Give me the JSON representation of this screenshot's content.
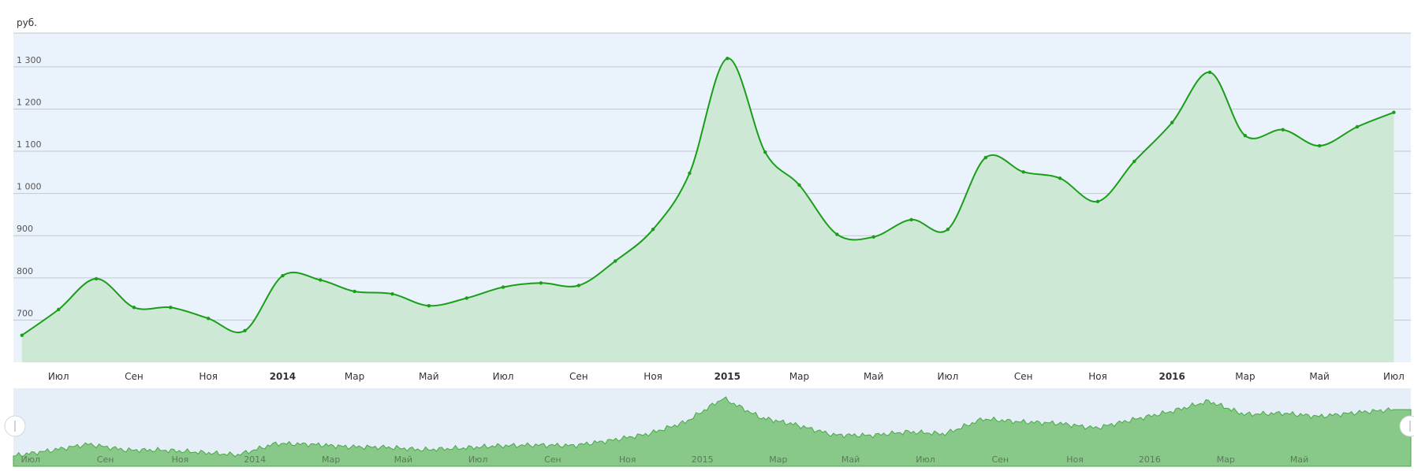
{
  "chart_data": {
    "type": "area",
    "unit_label": "руб.",
    "ylim": [
      600,
      1380
    ],
    "y_ticks": [
      {
        "value": 700,
        "label": "700"
      },
      {
        "value": 800,
        "label": "800"
      },
      {
        "value": 900,
        "label": "900"
      },
      {
        "value": 1000,
        "label": "1 000"
      },
      {
        "value": 1100,
        "label": "1 100"
      },
      {
        "value": 1200,
        "label": "1 200"
      },
      {
        "value": 1300,
        "label": "1 300"
      }
    ],
    "x_range": [
      "2013-05-25",
      "2016-07-15"
    ],
    "x_ticks": [
      {
        "date": "2013-07-01",
        "label": "Июл",
        "bold": false
      },
      {
        "date": "2013-09-01",
        "label": "Сен",
        "bold": false
      },
      {
        "date": "2013-11-01",
        "label": "Ноя",
        "bold": false
      },
      {
        "date": "2014-01-01",
        "label": "2014",
        "bold": true
      },
      {
        "date": "2014-03-01",
        "label": "Мар",
        "bold": false
      },
      {
        "date": "2014-05-01",
        "label": "Май",
        "bold": false
      },
      {
        "date": "2014-07-01",
        "label": "Июл",
        "bold": false
      },
      {
        "date": "2014-09-01",
        "label": "Сен",
        "bold": false
      },
      {
        "date": "2014-11-01",
        "label": "Ноя",
        "bold": false
      },
      {
        "date": "2015-01-01",
        "label": "2015",
        "bold": true
      },
      {
        "date": "2015-03-01",
        "label": "Мар",
        "bold": false
      },
      {
        "date": "2015-05-01",
        "label": "Май",
        "bold": false
      },
      {
        "date": "2015-07-01",
        "label": "Июл",
        "bold": false
      },
      {
        "date": "2015-09-01",
        "label": "Сен",
        "bold": false
      },
      {
        "date": "2015-11-01",
        "label": "Ноя",
        "bold": false
      },
      {
        "date": "2016-01-01",
        "label": "2016",
        "bold": true
      },
      {
        "date": "2016-03-01",
        "label": "Мар",
        "bold": false
      },
      {
        "date": "2016-05-01",
        "label": "Май",
        "bold": false
      },
      {
        "date": "2016-07-01",
        "label": "Июл",
        "bold": false
      }
    ],
    "grid": true,
    "legend": "none",
    "series": [
      {
        "color": "#1a9e1a",
        "fill": "#cde8d4",
        "points": [
          [
            "2013-06-01",
            664
          ],
          [
            "2013-07-01",
            725
          ],
          [
            "2013-08-01",
            798
          ],
          [
            "2013-09-01",
            730
          ],
          [
            "2013-10-01",
            730
          ],
          [
            "2013-11-01",
            704
          ],
          [
            "2013-12-01",
            675
          ],
          [
            "2014-01-01",
            805
          ],
          [
            "2014-02-01",
            795
          ],
          [
            "2014-03-01",
            768
          ],
          [
            "2014-04-01",
            762
          ],
          [
            "2014-05-01",
            734
          ],
          [
            "2014-06-01",
            752
          ],
          [
            "2014-07-01",
            778
          ],
          [
            "2014-08-01",
            788
          ],
          [
            "2014-09-01",
            782
          ],
          [
            "2014-10-01",
            840
          ],
          [
            "2014-11-01",
            915
          ],
          [
            "2014-12-01",
            1048
          ],
          [
            "2015-01-01",
            1320
          ],
          [
            "2015-02-01",
            1098
          ],
          [
            "2015-03-01",
            1020
          ],
          [
            "2015-04-01",
            903
          ],
          [
            "2015-05-01",
            897
          ],
          [
            "2015-06-01",
            938
          ],
          [
            "2015-07-01",
            915
          ],
          [
            "2015-08-01",
            1085
          ],
          [
            "2015-09-01",
            1051
          ],
          [
            "2015-10-01",
            1036
          ],
          [
            "2015-11-01",
            981
          ],
          [
            "2015-12-01",
            1076
          ],
          [
            "2016-01-01",
            1168
          ],
          [
            "2016-02-01",
            1287
          ],
          [
            "2016-03-01",
            1137
          ],
          [
            "2016-04-01",
            1151
          ],
          [
            "2016-05-01",
            1113
          ],
          [
            "2016-06-01",
            1158
          ],
          [
            "2016-07-01",
            1192
          ]
        ]
      }
    ],
    "navigator": {
      "x_range": [
        "2013-06-01",
        "2016-07-15"
      ],
      "ticks": [
        {
          "date": "2013-06-15",
          "label": "Июл"
        },
        {
          "date": "2013-08-15",
          "label": "Сен"
        },
        {
          "date": "2013-10-15",
          "label": "Ноя"
        },
        {
          "date": "2013-12-15",
          "label": "2014"
        },
        {
          "date": "2014-02-15",
          "label": "Мар"
        },
        {
          "date": "2014-04-15",
          "label": "Май"
        },
        {
          "date": "2014-06-15",
          "label": "Июл"
        },
        {
          "date": "2014-08-15",
          "label": "Сен"
        },
        {
          "date": "2014-10-15",
          "label": "Ноя"
        },
        {
          "date": "2014-12-15",
          "label": "2015"
        },
        {
          "date": "2015-02-15",
          "label": "Мар"
        },
        {
          "date": "2015-04-15",
          "label": "Май"
        },
        {
          "date": "2015-06-15",
          "label": "Июл"
        },
        {
          "date": "2015-08-15",
          "label": "Сен"
        },
        {
          "date": "2015-10-15",
          "label": "Ноя"
        },
        {
          "date": "2015-12-15",
          "label": "2016"
        },
        {
          "date": "2016-02-15",
          "label": "Мар"
        },
        {
          "date": "2016-04-15",
          "label": "Май"
        }
      ],
      "color": "#4aa84a",
      "fill": "#88c888",
      "background": "#e6eef8"
    },
    "colors": {
      "plot_background": "#eaf2fb",
      "grid_line": "#c0c8d0"
    }
  }
}
